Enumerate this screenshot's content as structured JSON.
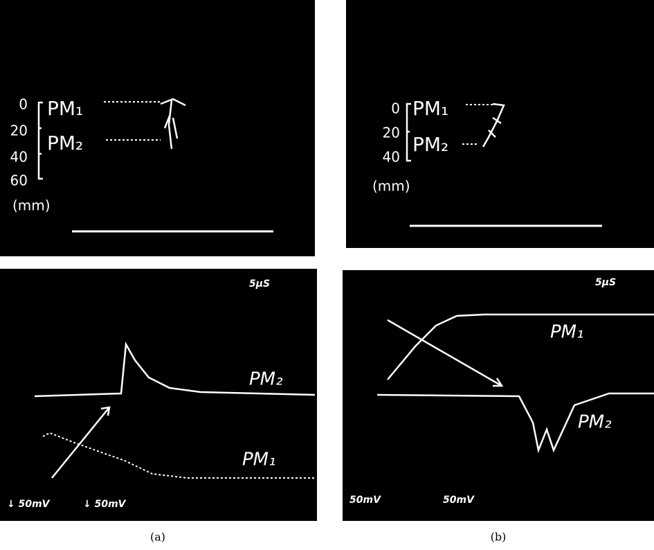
{
  "panels": [
    {
      "caption": "(a)",
      "image": {
        "scale_ticks": [
          "0",
          "20",
          "40",
          "60"
        ],
        "unit": "(mm)",
        "labels": [
          "PM₁",
          "PM₂"
        ]
      },
      "trace": {
        "time_scale": "5µS",
        "labels": [
          "PM₂",
          "PM₁"
        ],
        "volt_scales": [
          "↓ 50mV",
          "↓ 50mV"
        ]
      }
    },
    {
      "caption": "(b)",
      "image": {
        "scale_ticks": [
          "0",
          "20",
          "40"
        ],
        "unit": "(mm)",
        "labels": [
          "PM₁",
          "PM₂"
        ]
      },
      "trace": {
        "time_scale": "5µS",
        "labels": [
          "PM₁",
          "PM₂"
        ],
        "volt_scales": [
          "50mV",
          "50mV"
        ]
      }
    }
  ]
}
